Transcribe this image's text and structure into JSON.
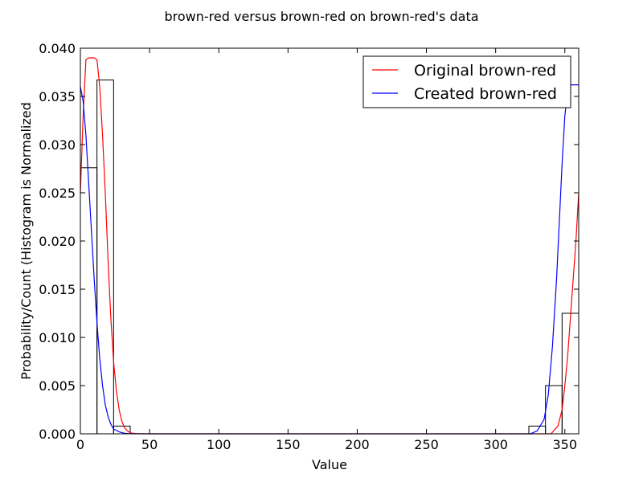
{
  "chart_data": {
    "type": "bar",
    "title": "brown-red versus brown-red on brown-red's data",
    "xlabel": "Value",
    "ylabel": "Probability/Count (Histogram is Normalized",
    "xlim": [
      0,
      360
    ],
    "ylim": [
      0,
      0.04
    ],
    "x_ticks": [
      "0",
      "50",
      "100",
      "150",
      "200",
      "250",
      "300",
      "350"
    ],
    "y_ticks": [
      "0.000",
      "0.005",
      "0.010",
      "0.015",
      "0.020",
      "0.025",
      "0.030",
      "0.035",
      "0.040"
    ],
    "grid": false,
    "legend_position": "upper right",
    "histogram": {
      "bin_width": 12,
      "bins": [
        {
          "x0": 0,
          "x1": 12,
          "value": 0.0276
        },
        {
          "x0": 12,
          "x1": 24,
          "value": 0.0367
        },
        {
          "x0": 24,
          "x1": 36,
          "value": 0.0008
        },
        {
          "x0": 324,
          "x1": 336,
          "value": 0.0008
        },
        {
          "x0": 336,
          "x1": 348,
          "value": 0.005
        },
        {
          "x0": 348,
          "x1": 360,
          "value": 0.0125
        }
      ],
      "edge_color": "#000000"
    },
    "series": [
      {
        "name": "Original brown-red",
        "color": "#ff0000",
        "type": "line",
        "points": [
          [
            0,
            0.025
          ],
          [
            2,
            0.033
          ],
          [
            4,
            0.0388
          ],
          [
            6,
            0.039
          ],
          [
            8,
            0.039
          ],
          [
            10,
            0.039
          ],
          [
            12,
            0.0388
          ],
          [
            14,
            0.036
          ],
          [
            16,
            0.031
          ],
          [
            18,
            0.025
          ],
          [
            20,
            0.018
          ],
          [
            22,
            0.012
          ],
          [
            24,
            0.0075
          ],
          [
            26,
            0.0045
          ],
          [
            28,
            0.0025
          ],
          [
            30,
            0.0013
          ],
          [
            32,
            0.0006
          ],
          [
            34,
            0.0003
          ],
          [
            36,
            0.0001
          ],
          [
            40,
            2e-05
          ],
          [
            50,
            0
          ],
          [
            340,
            0
          ],
          [
            345,
            0.0008
          ],
          [
            348,
            0.0025
          ],
          [
            350,
            0.005
          ],
          [
            352,
            0.008
          ],
          [
            354,
            0.012
          ],
          [
            356,
            0.016
          ],
          [
            358,
            0.02
          ],
          [
            360,
            0.025
          ]
        ]
      },
      {
        "name": "Created brown-red",
        "color": "#0000ff",
        "type": "line",
        "points": [
          [
            0,
            0.036
          ],
          [
            2,
            0.0345
          ],
          [
            4,
            0.031
          ],
          [
            6,
            0.026
          ],
          [
            8,
            0.021
          ],
          [
            10,
            0.016
          ],
          [
            12,
            0.0115
          ],
          [
            14,
            0.0078
          ],
          [
            16,
            0.005
          ],
          [
            18,
            0.003
          ],
          [
            20,
            0.0018
          ],
          [
            22,
            0.001
          ],
          [
            24,
            0.0005
          ],
          [
            28,
            0.0002
          ],
          [
            32,
            5e-05
          ],
          [
            36,
            1e-05
          ],
          [
            45,
            0
          ],
          [
            325,
            0
          ],
          [
            330,
            0.0003
          ],
          [
            335,
            0.0015
          ],
          [
            338,
            0.004
          ],
          [
            341,
            0.009
          ],
          [
            344,
            0.016
          ],
          [
            346,
            0.022
          ],
          [
            348,
            0.028
          ],
          [
            350,
            0.033
          ],
          [
            352,
            0.0355
          ],
          [
            354,
            0.0362
          ],
          [
            360,
            0.0362
          ]
        ]
      }
    ]
  }
}
